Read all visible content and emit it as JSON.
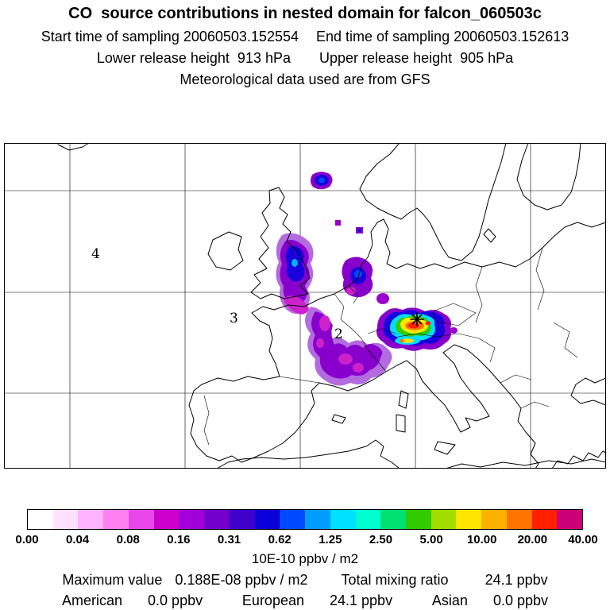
{
  "header": {
    "title": "CO  source contributions in nested domain for falcon_060503c",
    "line2_left": "Start time of sampling 20060503.152554",
    "line2_right": "End time of sampling 20060503.152613",
    "line3_left": "Lower release height  913 hPa",
    "line3_right": "Upper release height  905 hPa",
    "line4": "Meteorological data used are from GFS"
  },
  "map": {
    "cluster_labels": [
      {
        "text": "4"
      },
      {
        "text": "3"
      },
      {
        "text": "2"
      }
    ],
    "marker": "release-maximum-location"
  },
  "chart_data": {
    "type": "heatmap",
    "title": "CO source contributions in nested domain for falcon_060503c",
    "subtitle": "Meteorological data used are from GFS",
    "units": "10E-10 ppbv / m2",
    "legend_position": "bottom",
    "colorbar": {
      "tick_labels": [
        "0.00",
        "0.04",
        "0.08",
        "0.16",
        "0.31",
        "0.62",
        "1.25",
        "2.50",
        "5.00",
        "10.00",
        "20.00",
        "40.00"
      ],
      "levels": [
        0.0,
        0.04,
        0.08,
        0.16,
        0.31,
        0.62,
        1.25,
        2.5,
        5.0,
        10.0,
        20.0,
        40.0
      ],
      "colors": [
        "#ffffff",
        "#ffe1ff",
        "#ffb3ff",
        "#ff80f0",
        "#e846e8",
        "#cc00cc",
        "#a300d9",
        "#7300cc",
        "#4000cc",
        "#0b00d9",
        "#0049ff",
        "#009dff",
        "#00e1ff",
        "#00ffd0",
        "#00e070",
        "#30cc00",
        "#a3dd00",
        "#ffe600",
        "#ffb000",
        "#ff7300",
        "#ff2000",
        "#cc0077"
      ]
    },
    "stats": {
      "maximum_value_label": "Maximum value",
      "maximum_value": "0.188E-08 ppbv / m2",
      "total_mixing_ratio_label": "Total mixing ratio",
      "total_mixing_ratio": "24.1 ppbv",
      "contributions": [
        {
          "region": "American",
          "value": "0.0 ppbv"
        },
        {
          "region": "European",
          "value": "24.1 ppbv"
        },
        {
          "region": "Asian",
          "value": "0.0 ppbv"
        }
      ]
    }
  }
}
